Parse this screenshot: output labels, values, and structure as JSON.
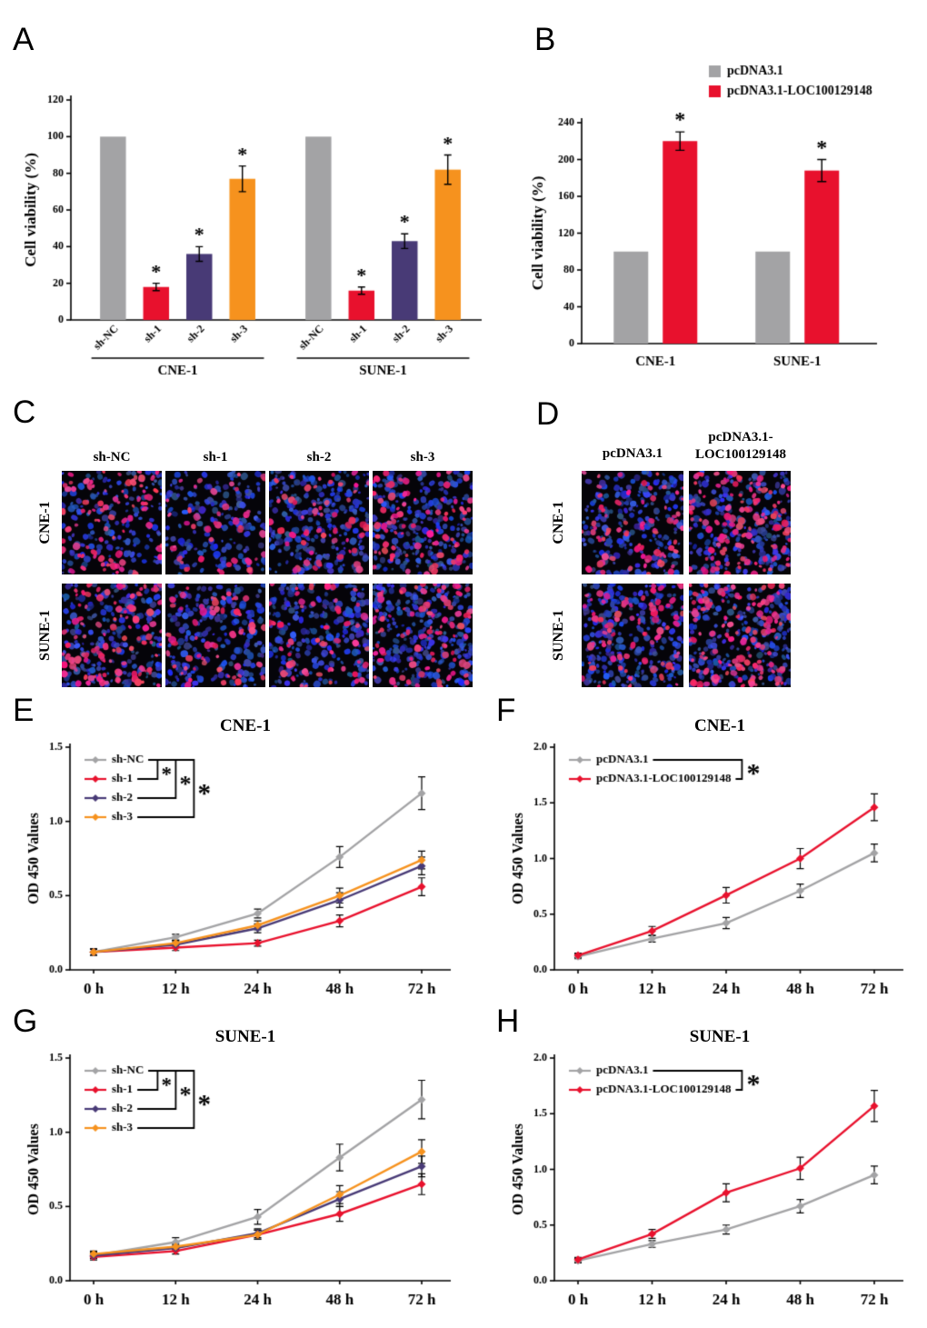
{
  "panel_letters": {
    "A": "A",
    "B": "B",
    "C": "C",
    "D": "D",
    "E": "E",
    "F": "F",
    "G": "G",
    "H": "H"
  },
  "colors": {
    "gray": "#a3a3a5",
    "red": "#e8112d",
    "purple": "#483a76",
    "orange": "#f6921e"
  },
  "chart_data": [
    {
      "id": "A",
      "type": "bar",
      "ylabel": "Cell viability (%)",
      "ylim": [
        0,
        120
      ],
      "yticks": [
        0,
        20,
        40,
        60,
        80,
        100,
        120
      ],
      "categories": [
        "sh-NC",
        "sh-1",
        "sh-2",
        "sh-3"
      ],
      "bar_colors": [
        "#a3a3a5",
        "#e8112d",
        "#483a76",
        "#f6921e"
      ],
      "groups": [
        {
          "label": "CNE-1",
          "values": [
            100,
            18,
            36,
            77
          ],
          "errors": [
            0,
            2,
            4,
            7
          ],
          "sig": [
            "",
            "*",
            "*",
            "*"
          ]
        },
        {
          "label": "SUNE-1",
          "values": [
            100,
            16,
            43,
            82
          ],
          "errors": [
            0,
            2,
            4,
            8
          ],
          "sig": [
            "",
            "*",
            "*",
            "*"
          ]
        }
      ]
    },
    {
      "id": "B",
      "type": "bar2",
      "ylabel": "Cell viability (%)",
      "ylim": [
        0,
        240
      ],
      "yticks": [
        0,
        40,
        80,
        120,
        160,
        200,
        240
      ],
      "legend": [
        "pcDNA3.1",
        "pcDNA3.1-LOC100129148"
      ],
      "bar_colors": [
        "#a3a3a5",
        "#e8112d"
      ],
      "groups": [
        {
          "label": "CNE-1",
          "values": [
            100,
            220
          ],
          "errors": [
            0,
            10
          ],
          "sig": [
            "",
            "*"
          ]
        },
        {
          "label": "SUNE-1",
          "values": [
            100,
            188
          ],
          "errors": [
            0,
            12
          ],
          "sig": [
            "",
            "*"
          ]
        }
      ]
    },
    {
      "id": "E",
      "type": "line",
      "title": "CNE-1",
      "ylabel": "OD 450 Values",
      "ylim": [
        0,
        1.5
      ],
      "yticks": [
        0,
        0.5,
        1,
        1.5
      ],
      "x_labels": [
        "0 h",
        "12 h",
        "24 h",
        "48 h",
        "72 h"
      ],
      "legend_style": "multi-bracket",
      "sig": [
        "*",
        "*",
        "*"
      ],
      "series": [
        {
          "name": "sh-NC",
          "color": "#a3a3a5",
          "values": [
            0.12,
            0.22,
            0.38,
            0.76,
            1.19
          ],
          "errors": [
            0.02,
            0.02,
            0.03,
            0.07,
            0.11
          ]
        },
        {
          "name": "sh-1",
          "color": "#e8112d",
          "values": [
            0.12,
            0.15,
            0.18,
            0.33,
            0.56
          ],
          "errors": [
            0.02,
            0.02,
            0.02,
            0.04,
            0.06
          ]
        },
        {
          "name": "sh-2",
          "color": "#483a76",
          "values": [
            0.12,
            0.17,
            0.28,
            0.47,
            0.7
          ],
          "errors": [
            0.02,
            0.02,
            0.03,
            0.05,
            0.06
          ]
        },
        {
          "name": "sh-3",
          "color": "#f6921e",
          "values": [
            0.12,
            0.18,
            0.3,
            0.5,
            0.74
          ],
          "errors": [
            0.02,
            0.02,
            0.03,
            0.05,
            0.06
          ]
        }
      ]
    },
    {
      "id": "F",
      "type": "line",
      "title": "CNE-1",
      "ylabel": "OD 450 Values",
      "ylim": [
        0,
        2
      ],
      "yticks": [
        0,
        0.5,
        1,
        1.5,
        2
      ],
      "x_labels": [
        "0 h",
        "12 h",
        "24 h",
        "48 h",
        "72 h"
      ],
      "legend_style": "pair-bracket",
      "sig": [
        "*"
      ],
      "series": [
        {
          "name": "pcDNA3.1",
          "color": "#a3a3a5",
          "values": [
            0.12,
            0.28,
            0.42,
            0.71,
            1.05
          ],
          "errors": [
            0.02,
            0.03,
            0.05,
            0.06,
            0.08
          ]
        },
        {
          "name": "pcDNA3.1-LOC100129148",
          "color": "#e8112d",
          "values": [
            0.13,
            0.35,
            0.67,
            1.0,
            1.46
          ],
          "errors": [
            0.02,
            0.04,
            0.07,
            0.09,
            0.12
          ]
        }
      ]
    },
    {
      "id": "G",
      "type": "line",
      "title": "SUNE-1",
      "ylabel": "OD 450 Values",
      "ylim": [
        0,
        1.5
      ],
      "yticks": [
        0,
        0.5,
        1,
        1.5
      ],
      "x_labels": [
        "0 h",
        "12 h",
        "24 h",
        "48 h",
        "72 h"
      ],
      "legend_style": "multi-bracket",
      "sig": [
        "*",
        "*",
        "*"
      ],
      "series": [
        {
          "name": "sh-NC",
          "color": "#a3a3a5",
          "values": [
            0.17,
            0.26,
            0.43,
            0.83,
            1.22
          ],
          "errors": [
            0.02,
            0.03,
            0.05,
            0.09,
            0.13
          ]
        },
        {
          "name": "sh-1",
          "color": "#e8112d",
          "values": [
            0.16,
            0.2,
            0.31,
            0.45,
            0.65
          ],
          "errors": [
            0.02,
            0.02,
            0.03,
            0.05,
            0.07
          ]
        },
        {
          "name": "sh-2",
          "color": "#483a76",
          "values": [
            0.17,
            0.22,
            0.32,
            0.55,
            0.77
          ],
          "errors": [
            0.02,
            0.02,
            0.03,
            0.05,
            0.07
          ]
        },
        {
          "name": "sh-3",
          "color": "#f6921e",
          "values": [
            0.18,
            0.23,
            0.31,
            0.58,
            0.87
          ],
          "errors": [
            0.02,
            0.02,
            0.03,
            0.06,
            0.08
          ]
        }
      ]
    },
    {
      "id": "H",
      "type": "line",
      "title": "SUNE-1",
      "ylabel": "OD 450 Values",
      "ylim": [
        0,
        2
      ],
      "yticks": [
        0,
        0.5,
        1,
        1.5,
        2
      ],
      "x_labels": [
        "0 h",
        "12 h",
        "24 h",
        "48 h",
        "72 h"
      ],
      "legend_style": "pair-bracket",
      "sig": [
        "*"
      ],
      "series": [
        {
          "name": "pcDNA3.1",
          "color": "#a3a3a5",
          "values": [
            0.18,
            0.33,
            0.46,
            0.67,
            0.95
          ],
          "errors": [
            0.02,
            0.03,
            0.04,
            0.06,
            0.08
          ]
        },
        {
          "name": "pcDNA3.1-LOC100129148",
          "color": "#e8112d",
          "values": [
            0.19,
            0.42,
            0.79,
            1.01,
            1.57
          ],
          "errors": [
            0.02,
            0.04,
            0.08,
            0.1,
            0.14
          ]
        }
      ]
    }
  ],
  "panelC": {
    "col_labels": [
      "sh-NC",
      "sh-1",
      "sh-2",
      "sh-3"
    ],
    "row_labels": [
      "CNE-1",
      "SUNE-1"
    ],
    "cells": [
      [
        {
          "blue": 150,
          "red": 85
        },
        {
          "blue": 170,
          "red": 45
        },
        {
          "blue": 260,
          "red": 55
        },
        {
          "blue": 240,
          "red": 80
        }
      ],
      [
        {
          "blue": 210,
          "red": 105
        },
        {
          "blue": 200,
          "red": 60
        },
        {
          "blue": 230,
          "red": 55
        },
        {
          "blue": 260,
          "red": 90
        }
      ]
    ]
  },
  "panelD": {
    "col_labels": [
      "pcDNA3.1",
      "pcDNA3.1-\nLOC100129148"
    ],
    "row_labels": [
      "CNE-1",
      "SUNE-1"
    ],
    "cells": [
      [
        {
          "blue": 220,
          "red": 70
        },
        {
          "blue": 230,
          "red": 120
        }
      ],
      [
        {
          "blue": 255,
          "red": 80
        },
        {
          "blue": 240,
          "red": 130
        }
      ]
    ]
  }
}
